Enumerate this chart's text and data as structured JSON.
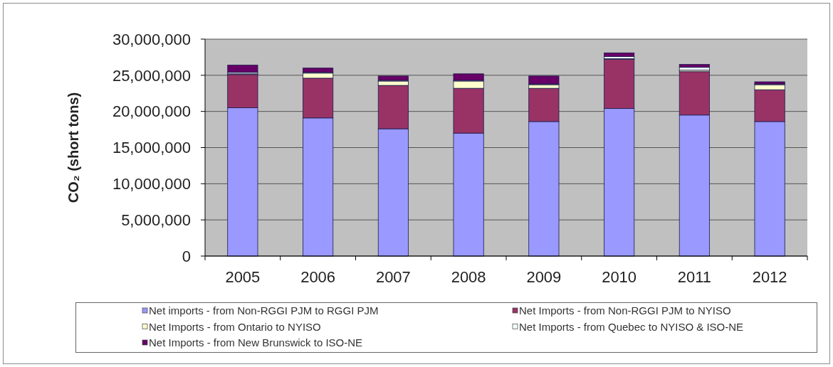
{
  "chart_data": {
    "type": "bar",
    "stacked": true,
    "ylabel": "CO₂ (short tons)",
    "categories": [
      "2005",
      "2006",
      "2007",
      "2008",
      "2009",
      "2010",
      "2011",
      "2012"
    ],
    "series": [
      {
        "name": "Net imports - from Non-RGGI PJM to RGGI PJM",
        "color": "#9999ff",
        "values": [
          20500000,
          19100000,
          17600000,
          17000000,
          18600000,
          20400000,
          19500000,
          18600000
        ]
      },
      {
        "name": "Net Imports - from Non-RGGI PJM to NYISO",
        "color": "#993366",
        "values": [
          4600000,
          5500000,
          6000000,
          6200000,
          4600000,
          6800000,
          6000000,
          4400000
        ]
      },
      {
        "name": "Net Imports - from Ontario to NYISO",
        "color": "#ffffcc",
        "values": [
          100000,
          700000,
          600000,
          1000000,
          500000,
          100000,
          200000,
          700000
        ]
      },
      {
        "name": "Net Imports - from Quebec to NYISO & ISO-NE",
        "color": "#f2ffff",
        "values": [
          200000,
          100000,
          100000,
          100000,
          100000,
          300000,
          400000,
          100000
        ]
      },
      {
        "name": "Net Imports - from New Brunswick to ISO-NE",
        "color": "#660066",
        "values": [
          1000000,
          600000,
          600000,
          900000,
          1100000,
          500000,
          400000,
          300000
        ]
      }
    ],
    "ylim": [
      0,
      30000000
    ],
    "yticks": [
      0,
      {
        "value": 5000000,
        "label": "5,000,000"
      },
      {
        "value": 10000000,
        "label": "10,000,000"
      },
      {
        "value": 15000000,
        "label": "15,000,000"
      },
      {
        "value": 20000000,
        "label": "20,000,000"
      },
      {
        "value": 25000000,
        "label": "25,000,000"
      },
      {
        "value": 30000000,
        "label": "30,000,000"
      }
    ],
    "grid": "y",
    "legend": "bottom"
  }
}
